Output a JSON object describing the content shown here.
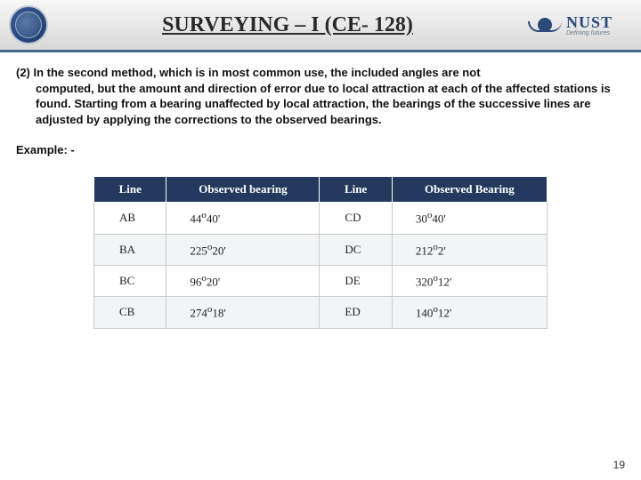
{
  "header": {
    "title": "SURVEYING – I (CE- 128)",
    "org": "NUST",
    "tagline": "Defining futures"
  },
  "body": {
    "para_lead": "(2) In the second method, which is in most common use, the included angles are not",
    "para_rest": "computed, but the amount and direction of error due to local attraction at each of the affected stations is found. Starting from a bearing unaffected by local attraction, the bearings of the successive lines are adjusted by applying the corrections to the observed bearings.",
    "example_label": "Example: -"
  },
  "table": {
    "columns": [
      "Line",
      "Observed bearing",
      "Line",
      "Observed Bearing"
    ],
    "rows": [
      {
        "c1": "AB",
        "c2": "44o40'",
        "c3": "CD",
        "c4": "30o40'"
      },
      {
        "c1": "BA",
        "c2": "225o20'",
        "c3": "DC",
        "c4": "212o2'"
      },
      {
        "c1": "BC",
        "c2": "96o20'",
        "c3": "DE",
        "c4": "320o12'"
      },
      {
        "c1": "CB",
        "c2": "274o18'",
        "c3": "ED",
        "c4": "140o12'"
      }
    ],
    "header_bg": "#233a5e",
    "header_fg": "#ffffff",
    "row_alt_bg": "#f2f4f6",
    "border_color": "#cccccc",
    "font": "Times New Roman"
  },
  "page_number": "19"
}
